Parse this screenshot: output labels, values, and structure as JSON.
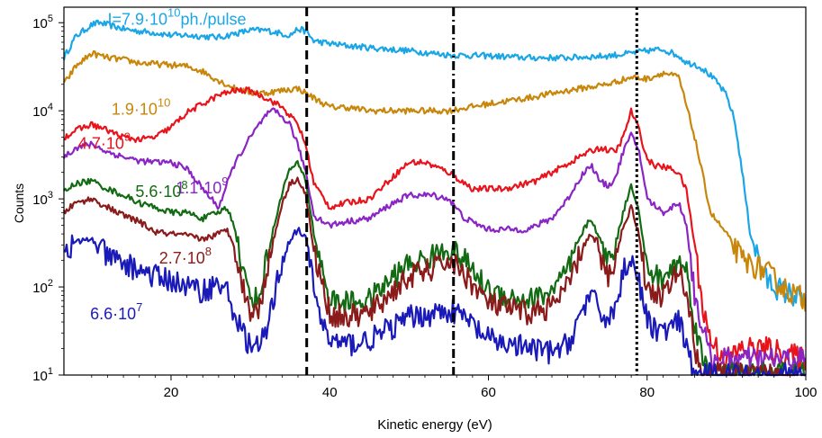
{
  "chart_data": {
    "type": "line",
    "title": "",
    "xlabel": "Kinetic energy (eV)",
    "ylabel": "Counts",
    "yscale": "log",
    "xlim": [
      6.5,
      100
    ],
    "ylim": [
      10,
      150000
    ],
    "x_ticks": [
      20,
      40,
      60,
      80,
      100
    ],
    "y_ticks": [
      {
        "value": 10,
        "base": "10",
        "exp": "1"
      },
      {
        "value": 100,
        "base": "10",
        "exp": "2"
      },
      {
        "value": 1000,
        "base": "10",
        "exp": "3"
      },
      {
        "value": 10000,
        "base": "10",
        "exp": "4"
      },
      {
        "value": 100000,
        "base": "10",
        "exp": "5"
      }
    ],
    "vertical_lines": [
      {
        "x": 37.1,
        "style": "dashed"
      },
      {
        "x": 55.6,
        "style": "dash-dot"
      },
      {
        "x": 78.7,
        "style": "dotted"
      }
    ],
    "grid": false,
    "series": [
      {
        "name": "I=7.9·10^10 ph./pulse",
        "label_parts": [
          "I=7.9·10",
          "10",
          "ph./pulse"
        ],
        "label_pos": [
          12,
          95000
        ],
        "color": "#1aa6e6",
        "x": [
          6.5,
          8,
          10,
          11,
          12,
          14,
          16,
          18,
          20,
          22,
          24,
          26,
          28,
          30,
          32,
          34,
          35,
          36,
          37,
          38,
          40,
          42,
          45,
          50,
          55,
          60,
          65,
          70,
          75,
          78,
          80,
          82,
          84,
          85,
          86,
          87,
          88,
          89,
          90,
          91,
          92,
          93,
          95,
          97,
          100
        ],
        "y": [
          40000,
          70000,
          95000,
          100000,
          95000,
          85000,
          80000,
          77000,
          72000,
          72000,
          70000,
          68000,
          75000,
          82000,
          82000,
          75000,
          72000,
          85000,
          80000,
          62000,
          58000,
          55000,
          52000,
          48000,
          43000,
          42000,
          40000,
          40000,
          42000,
          45000,
          48000,
          50000,
          42000,
          35000,
          34000,
          30000,
          25000,
          20000,
          15000,
          8000,
          2000,
          400,
          120,
          90,
          70
        ]
      },
      {
        "name": "1.9·10^10",
        "label_parts": [
          "1.9·10",
          "10"
        ],
        "label_pos": [
          12.5,
          9000
        ],
        "color": "#c8860a",
        "x": [
          6.5,
          8,
          10,
          12,
          14,
          16,
          18,
          20,
          22,
          24,
          26,
          28,
          30,
          32,
          34,
          36,
          38,
          40,
          42,
          45,
          50,
          55,
          60,
          65,
          70,
          75,
          78,
          80,
          82,
          84,
          86,
          88,
          90,
          92,
          95,
          97,
          100
        ],
        "y": [
          20000,
          32000,
          45000,
          40000,
          38000,
          35000,
          34000,
          33000,
          32000,
          28000,
          22000,
          18000,
          16000,
          16000,
          17000,
          18000,
          14000,
          11000,
          11000,
          10000,
          10000,
          10000,
          12000,
          14000,
          17000,
          20000,
          24000,
          23000,
          27000,
          24000,
          5000,
          700,
          400,
          200,
          150,
          100,
          70
        ]
      },
      {
        "name": "4.7·10^9",
        "label_parts": [
          "4.7·10",
          "9"
        ],
        "label_pos": [
          8.3,
          3700
        ],
        "color": "#e8141c",
        "x": [
          6.5,
          8,
          10,
          11,
          12,
          14,
          16,
          18,
          20,
          22,
          24,
          26,
          28,
          30,
          32,
          34,
          36,
          37,
          38,
          40,
          42,
          45,
          48,
          50,
          52,
          55,
          58,
          62,
          66,
          70,
          72,
          74,
          76,
          77,
          78,
          79,
          80,
          81,
          82,
          83,
          84,
          85,
          86,
          87,
          88,
          90,
          92,
          95,
          100
        ],
        "y": [
          5000,
          6000,
          7000,
          6500,
          6000,
          5000,
          4700,
          5000,
          6500,
          9500,
          12000,
          15000,
          17000,
          17000,
          14000,
          11000,
          7000,
          4000,
          1500,
          800,
          900,
          1000,
          1800,
          2600,
          2600,
          2000,
          1300,
          1300,
          1600,
          2500,
          3200,
          3800,
          3400,
          5000,
          10000,
          6000,
          2800,
          2400,
          2300,
          2200,
          2000,
          1200,
          300,
          60,
          25,
          15,
          20,
          20,
          15
        ]
      },
      {
        "name": "1.1·10^9",
        "label_parts": [
          "1.1·10",
          "9"
        ],
        "label_pos": [
          20.6,
          1150
        ],
        "color": "#8a24c4",
        "x": [
          6.5,
          8,
          10,
          12,
          14,
          16,
          18,
          20,
          22,
          24,
          26,
          28,
          30,
          32,
          33,
          34,
          35,
          36,
          37,
          38,
          40,
          42,
          45,
          48,
          50,
          53,
          55,
          57,
          60,
          65,
          68,
          70,
          72,
          73,
          74,
          75,
          76,
          77,
          78,
          79,
          80,
          82,
          84,
          85,
          86,
          88
        ],
        "y": [
          3000,
          3800,
          4200,
          3400,
          3000,
          2700,
          2600,
          2600,
          2200,
          1300,
          800,
          2500,
          5000,
          9000,
          10000,
          8500,
          7000,
          4000,
          2000,
          650,
          500,
          550,
          600,
          900,
          1100,
          1100,
          1000,
          600,
          450,
          450,
          600,
          1000,
          2000,
          2400,
          1600,
          1400,
          1700,
          3500,
          5300,
          3500,
          1000,
          700,
          900,
          500,
          80,
          15
        ]
      },
      {
        "name": "5.6·10^8",
        "label_parts": [
          "5.6·10",
          "8"
        ],
        "label_pos": [
          15.5,
          1050
        ],
        "color": "#126b12",
        "x": [
          6.5,
          8,
          10,
          12,
          14,
          16,
          18,
          20,
          22,
          24,
          26,
          27,
          28,
          29,
          30,
          31,
          32,
          34,
          35,
          36,
          37,
          38,
          40,
          42,
          45,
          48,
          50,
          53,
          55,
          57,
          60,
          65,
          68,
          70,
          72,
          73,
          74,
          75,
          76,
          77,
          78,
          79,
          80,
          82,
          84,
          85,
          86,
          87,
          88
        ],
        "y": [
          1200,
          1500,
          1600,
          1300,
          1100,
          900,
          800,
          700,
          700,
          600,
          700,
          800,
          500,
          150,
          80,
          70,
          200,
          1200,
          2200,
          2500,
          1600,
          400,
          70,
          65,
          70,
          130,
          180,
          220,
          280,
          200,
          90,
          70,
          90,
          150,
          450,
          600,
          350,
          200,
          300,
          700,
          1500,
          700,
          150,
          120,
          200,
          150,
          40,
          15,
          10
        ]
      },
      {
        "name": "2.7·10^8",
        "label_parts": [
          "2.7·10",
          "8"
        ],
        "label_pos": [
          18.5,
          185
        ],
        "color": "#8b1a1a",
        "x": [
          6.5,
          8,
          10,
          12,
          14,
          16,
          18,
          20,
          22,
          24,
          26,
          27,
          28,
          29,
          30,
          31,
          32,
          34,
          35,
          36,
          37,
          38,
          40,
          42,
          45,
          48,
          50,
          53,
          55,
          57,
          60,
          65,
          68,
          70,
          72,
          73,
          74,
          75,
          76,
          77,
          78,
          79,
          80,
          82,
          84,
          85,
          86,
          87
        ],
        "y": [
          700,
          900,
          1000,
          800,
          650,
          550,
          420,
          400,
          380,
          350,
          400,
          450,
          300,
          100,
          55,
          50,
          150,
          900,
          1500,
          1700,
          1100,
          250,
          50,
          45,
          50,
          90,
          130,
          160,
          200,
          140,
          65,
          50,
          60,
          100,
          300,
          400,
          230,
          130,
          200,
          500,
          800,
          400,
          90,
          80,
          150,
          90,
          20,
          10
        ]
      },
      {
        "name": "6.6·10^7",
        "label_parts": [
          "6.6·10",
          "7"
        ],
        "label_pos": [
          9.8,
          43
        ],
        "color": "#1a1ab8",
        "x": [
          6.5,
          8,
          10,
          12,
          14,
          16,
          18,
          20,
          22,
          24,
          25,
          26,
          27,
          28,
          29,
          30,
          31,
          32,
          33,
          34,
          35,
          36,
          37,
          38,
          39,
          40,
          42,
          45,
          48,
          50,
          53,
          55,
          57,
          60,
          65,
          68,
          70,
          72,
          73,
          74,
          75,
          76,
          77,
          78,
          79,
          80,
          82,
          84,
          85,
          86
        ],
        "y": [
          250,
          320,
          350,
          220,
          180,
          160,
          130,
          120,
          100,
          90,
          100,
          110,
          90,
          50,
          30,
          22,
          20,
          30,
          80,
          200,
          350,
          450,
          350,
          100,
          40,
          25,
          22,
          25,
          35,
          45,
          50,
          55,
          45,
          25,
          20,
          18,
          22,
          60,
          80,
          50,
          45,
          55,
          150,
          230,
          110,
          40,
          30,
          40,
          20,
          10
        ]
      }
    ]
  }
}
